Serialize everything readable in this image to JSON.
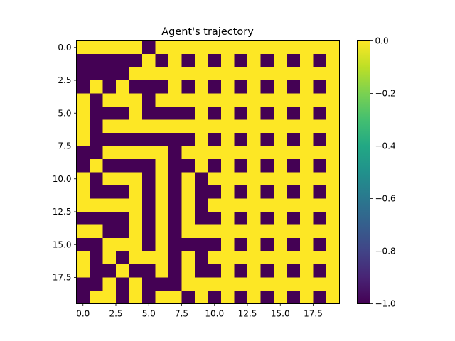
{
  "chart_data": {
    "type": "heatmap",
    "title": "Agent's trajectory",
    "xlabel": "",
    "ylabel": "",
    "x_ticks": [
      "0.0",
      "2.5",
      "5.0",
      "7.5",
      "10.0",
      "12.5",
      "15.0",
      "17.5"
    ],
    "x_tick_values": [
      0,
      2.5,
      5,
      7.5,
      10,
      12.5,
      15,
      17.5
    ],
    "y_ticks": [
      "0.0",
      "2.5",
      "5.0",
      "7.5",
      "10.0",
      "12.5",
      "15.0",
      "17.5"
    ],
    "y_tick_values": [
      0,
      2.5,
      5,
      7.5,
      10,
      12.5,
      15,
      17.5
    ],
    "extent": [
      -0.5,
      19.5,
      19.5,
      -0.5
    ],
    "colormap": "viridis",
    "vmin": -1.0,
    "vmax": 0.0,
    "low_color": "#440154",
    "high_color": "#fde725",
    "colorbar_ticks": [
      "0.0",
      "−0.2",
      "−0.4",
      "−0.6",
      "−0.8",
      "−1.0"
    ],
    "colorbar_tick_values": [
      0.0,
      -0.2,
      -0.4,
      -0.6,
      -0.8,
      -1.0
    ],
    "grid": false,
    "matrix": [
      [
        0,
        0,
        0,
        0,
        0,
        -1,
        0,
        0,
        0,
        0,
        0,
        0,
        0,
        0,
        0,
        0,
        0,
        0,
        0,
        0
      ],
      [
        -1,
        -1,
        -1,
        -1,
        -1,
        0,
        -1,
        0,
        -1,
        0,
        -1,
        0,
        -1,
        0,
        -1,
        0,
        -1,
        0,
        -1,
        0
      ],
      [
        -1,
        -1,
        -1,
        -1,
        0,
        0,
        0,
        0,
        0,
        0,
        0,
        0,
        0,
        0,
        0,
        0,
        0,
        0,
        0,
        0
      ],
      [
        -1,
        0,
        -1,
        0,
        -1,
        -1,
        -1,
        0,
        -1,
        0,
        -1,
        0,
        -1,
        0,
        -1,
        0,
        -1,
        0,
        -1,
        0
      ],
      [
        0,
        -1,
        0,
        0,
        0,
        -1,
        0,
        0,
        0,
        0,
        0,
        0,
        0,
        0,
        0,
        0,
        0,
        0,
        0,
        0
      ],
      [
        0,
        -1,
        -1,
        -1,
        0,
        -1,
        -1,
        -1,
        -1,
        0,
        -1,
        0,
        -1,
        0,
        -1,
        0,
        -1,
        0,
        -1,
        0
      ],
      [
        0,
        -1,
        0,
        0,
        0,
        0,
        0,
        0,
        0,
        0,
        0,
        0,
        0,
        0,
        0,
        0,
        0,
        0,
        0,
        0
      ],
      [
        0,
        -1,
        -1,
        -1,
        -1,
        -1,
        -1,
        -1,
        -1,
        0,
        -1,
        0,
        -1,
        0,
        -1,
        0,
        -1,
        0,
        -1,
        0
      ],
      [
        -1,
        -1,
        0,
        0,
        0,
        0,
        0,
        -1,
        0,
        0,
        0,
        0,
        0,
        0,
        0,
        0,
        0,
        0,
        0,
        0
      ],
      [
        -1,
        0,
        -1,
        -1,
        -1,
        -1,
        0,
        -1,
        -1,
        0,
        -1,
        0,
        -1,
        0,
        -1,
        0,
        -1,
        0,
        -1,
        0
      ],
      [
        0,
        -1,
        0,
        0,
        0,
        -1,
        0,
        -1,
        0,
        -1,
        0,
        0,
        0,
        0,
        0,
        0,
        0,
        0,
        0,
        0
      ],
      [
        0,
        -1,
        -1,
        -1,
        0,
        -1,
        0,
        -1,
        0,
        -1,
        -1,
        0,
        -1,
        0,
        -1,
        0,
        -1,
        0,
        -1,
        0
      ],
      [
        0,
        0,
        0,
        0,
        0,
        -1,
        0,
        -1,
        0,
        -1,
        0,
        0,
        0,
        0,
        0,
        0,
        0,
        0,
        0,
        0
      ],
      [
        -1,
        -1,
        -1,
        -1,
        0,
        -1,
        0,
        -1,
        0,
        -1,
        -1,
        0,
        -1,
        0,
        -1,
        0,
        -1,
        0,
        -1,
        0
      ],
      [
        0,
        0,
        -1,
        -1,
        0,
        -1,
        0,
        -1,
        0,
        0,
        0,
        0,
        0,
        0,
        0,
        0,
        0,
        0,
        0,
        0
      ],
      [
        -1,
        -1,
        0,
        0,
        0,
        -1,
        0,
        -1,
        -1,
        -1,
        -1,
        0,
        -1,
        0,
        -1,
        0,
        -1,
        0,
        -1,
        0
      ],
      [
        0,
        -1,
        0,
        -1,
        0,
        0,
        0,
        -1,
        0,
        -1,
        0,
        0,
        0,
        0,
        0,
        0,
        0,
        0,
        0,
        0
      ],
      [
        0,
        -1,
        -1,
        0,
        -1,
        -1,
        0,
        -1,
        0,
        -1,
        -1,
        0,
        -1,
        0,
        -1,
        0,
        -1,
        0,
        -1,
        0
      ],
      [
        -1,
        -1,
        0,
        -1,
        0,
        -1,
        -1,
        -1,
        0,
        0,
        0,
        0,
        0,
        0,
        0,
        0,
        0,
        0,
        0,
        0
      ],
      [
        -1,
        0,
        0,
        -1,
        0,
        -1,
        0,
        0,
        -1,
        0,
        -1,
        0,
        -1,
        0,
        -1,
        0,
        -1,
        0,
        -1,
        0
      ]
    ]
  }
}
